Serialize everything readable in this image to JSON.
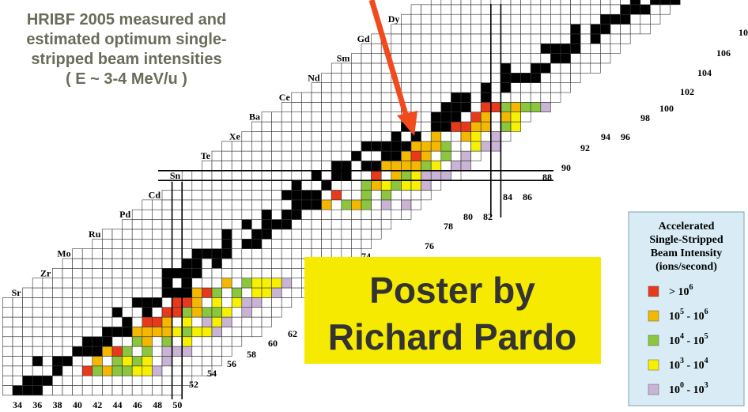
{
  "title": [
    "HRIBF 2005 measured and",
    "estimated optimum single-",
    "stripped beam intensities",
    "( E ~ 3-4 MeV/u )"
  ],
  "elements": [
    "Dy",
    "Gd",
    "Sm",
    "Nd",
    "Ce",
    "Ba",
    "Xe",
    "Te",
    "Sn",
    "Cd",
    "Pd",
    "Ru",
    "Mo",
    "Zr",
    "Sr"
  ],
  "bottom_numbers": [
    34,
    36,
    38,
    40,
    42,
    44,
    46,
    48,
    50
  ],
  "diagonal_numbers": [
    52,
    54,
    56,
    58,
    60,
    62,
    74,
    76,
    78,
    80,
    82,
    84,
    86,
    88,
    90,
    92,
    94,
    96,
    98,
    100,
    102,
    104,
    106,
    10
  ],
  "poster": [
    "Poster by",
    "Richard Pardo"
  ],
  "legend": {
    "title": [
      "Accelerated",
      "Single-Stripped",
      "Beam Intensity",
      "(ions/second)"
    ],
    "entries": [
      {
        "color": "#e8391c",
        "parts": [
          "> 10",
          "6"
        ]
      },
      {
        "color": "#f5b800",
        "parts": [
          "10",
          "5",
          " - 10",
          "6"
        ]
      },
      {
        "color": "#8cc63e",
        "parts": [
          "10",
          "4",
          " - 10",
          "5"
        ]
      },
      {
        "color": "#f7f000",
        "parts": [
          "10",
          "3",
          " - 10",
          "4"
        ]
      },
      {
        "color": "#c9b4d6",
        "parts": [
          "10",
          "0",
          " - 10",
          "3"
        ]
      }
    ]
  }
}
